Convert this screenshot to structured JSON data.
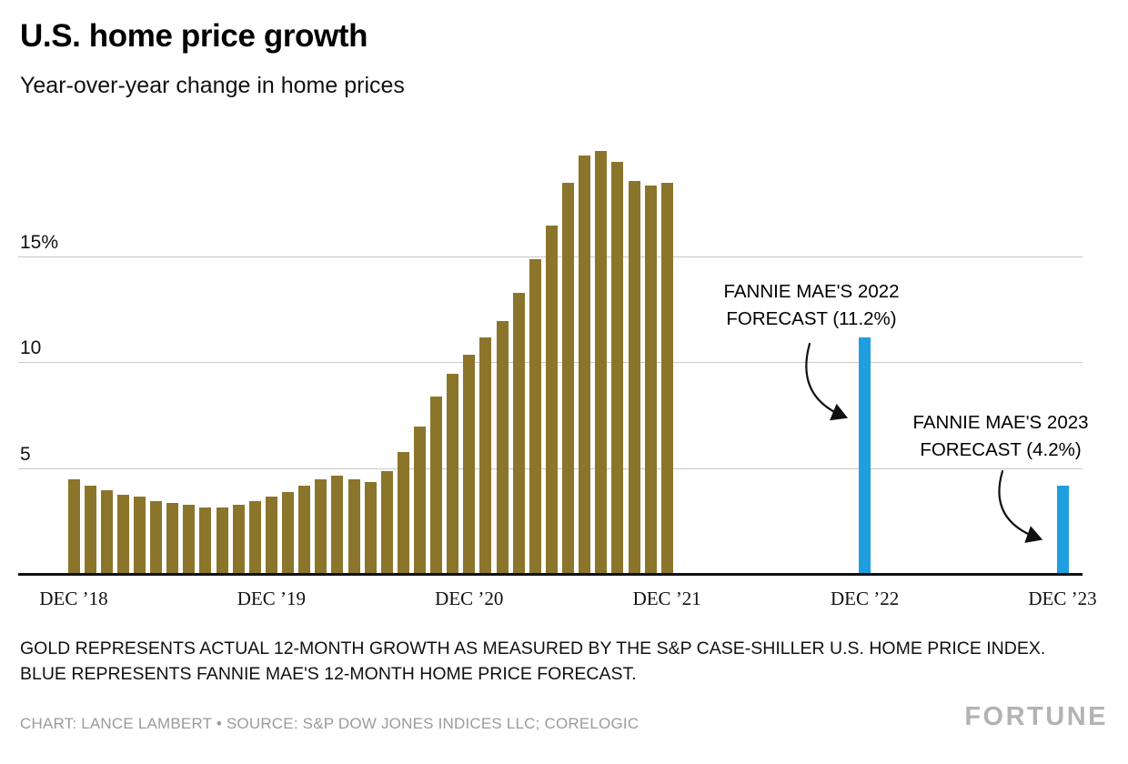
{
  "header": {
    "title": "U.S. home price growth",
    "subtitle": "Year-over-year change in home prices"
  },
  "chart_data": {
    "type": "bar",
    "unit": "percent",
    "ylim": [
      0,
      20.7
    ],
    "grid": true,
    "y_ticks": [
      {
        "value": 5,
        "label": "5"
      },
      {
        "value": 10,
        "label": "10"
      },
      {
        "value": 15,
        "label": "15%"
      }
    ],
    "x_ticks": [
      {
        "month_index": 0,
        "label": "DEC ’18"
      },
      {
        "month_index": 12,
        "label": "DEC ’19"
      },
      {
        "month_index": 24,
        "label": "DEC ’20"
      },
      {
        "month_index": 36,
        "label": "DEC ’21"
      },
      {
        "month_index": 48,
        "label": "DEC ’22"
      },
      {
        "month_index": 60,
        "label": "DEC ’23"
      }
    ],
    "series": [
      {
        "name": "Actual 12-month growth (S&P Case-Shiller U.S. Home Price Index)",
        "color": "#8b752b",
        "start_month_index": 0,
        "x": [
          "Dec '18",
          "Jan '19",
          "Feb '19",
          "Mar '19",
          "Apr '19",
          "May '19",
          "Jun '19",
          "Jul '19",
          "Aug '19",
          "Sep '19",
          "Oct '19",
          "Nov '19",
          "Dec '19",
          "Jan '20",
          "Feb '20",
          "Mar '20",
          "Apr '20",
          "May '20",
          "Jun '20",
          "Jul '20",
          "Aug '20",
          "Sep '20",
          "Oct '20",
          "Nov '20",
          "Dec '20",
          "Jan '21",
          "Feb '21",
          "Mar '21",
          "Apr '21",
          "May '21",
          "Jun '21",
          "Jul '21",
          "Aug '21",
          "Sep '21",
          "Oct '21",
          "Nov '21",
          "Dec '21"
        ],
        "values": [
          4.5,
          4.2,
          4.0,
          3.8,
          3.7,
          3.5,
          3.4,
          3.3,
          3.2,
          3.2,
          3.3,
          3.5,
          3.7,
          3.9,
          4.2,
          4.5,
          4.7,
          4.5,
          4.4,
          4.9,
          5.8,
          7.0,
          8.4,
          9.5,
          10.4,
          11.2,
          12.0,
          13.3,
          14.9,
          16.5,
          18.5,
          19.8,
          20.0,
          19.5,
          18.6,
          18.4,
          18.5
        ]
      },
      {
        "name": "Fannie Mae 12-month home price forecast",
        "color": "#1f9fdf",
        "points": [
          {
            "x": "DEC ’22",
            "month_index": 48,
            "value": 11.2
          },
          {
            "x": "DEC ’23",
            "month_index": 60,
            "value": 4.2
          }
        ]
      }
    ],
    "annotations": [
      {
        "text": "FANNIE MAE'S 2022 FORECAST (11.2%)",
        "value": 11.2
      },
      {
        "text": "FANNIE MAE'S 2023 FORECAST (4.2%)",
        "value": 4.2
      }
    ]
  },
  "footer": {
    "note": "GOLD REPRESENTS ACTUAL 12-MONTH GROWTH AS MEASURED BY THE S&P CASE-SHILLER U.S. HOME PRICE INDEX. BLUE REPRESENTS FANNIE MAE'S 12-MONTH HOME PRICE FORECAST.",
    "credit": "CHART: LANCE LAMBERT • SOURCE: S&P DOW JONES INDICES LLC; CORELOGIC",
    "brand": "FORTUNE"
  }
}
